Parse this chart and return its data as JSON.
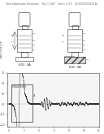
{
  "background_color": "#ffffff",
  "header_text": "Patent Application Publication    May 3, 2007    Sheet 1 of 8    US 2007/0100239 A1",
  "fig3a_label": "FIG. 3A",
  "fig3b_label": "FIG. 3B",
  "fig2a_label": "FIG. 2A",
  "waveform_ylabel": "AMPLITUDE (V/V)",
  "waveform_xlabel": "TIME (ms)",
  "line_color": "#333333",
  "label_color": "#222222",
  "hatch_color": "#555555",
  "wave_bg": "#f5f5f5"
}
